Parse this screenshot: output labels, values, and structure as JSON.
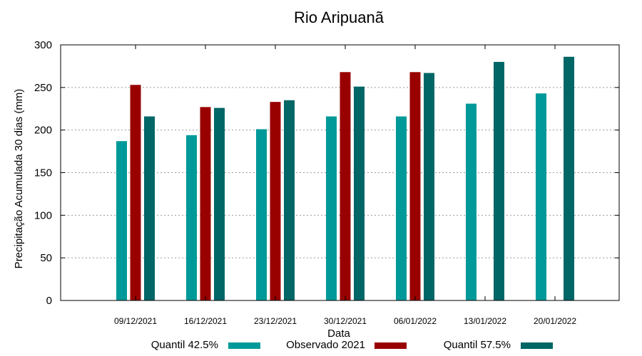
{
  "chart_data": {
    "type": "bar",
    "title": "Rio Aripuanã",
    "xlabel": "Data",
    "ylabel": "Precipitação Acumulada 30 dias (mm)",
    "ylim": [
      0,
      300
    ],
    "yticks": [
      0,
      50,
      100,
      150,
      200,
      250,
      300
    ],
    "categories": [
      "09/12/2021",
      "16/12/2021",
      "23/12/2021",
      "30/12/2021",
      "06/01/2022",
      "13/01/2022",
      "20/01/2022"
    ],
    "series": [
      {
        "name": "Quantil 42.5%",
        "color": "#009999",
        "values": [
          187,
          194,
          201,
          216,
          216,
          231,
          243
        ]
      },
      {
        "name": "Observado 2021",
        "color": "#990000",
        "values": [
          253,
          227,
          233,
          268,
          268,
          null,
          null
        ]
      },
      {
        "name": "Quantil 57.5%",
        "color": "#006666",
        "values": [
          216,
          226,
          235,
          251,
          267,
          280,
          286
        ]
      }
    ],
    "grid": true,
    "legend_position": "bottom"
  }
}
